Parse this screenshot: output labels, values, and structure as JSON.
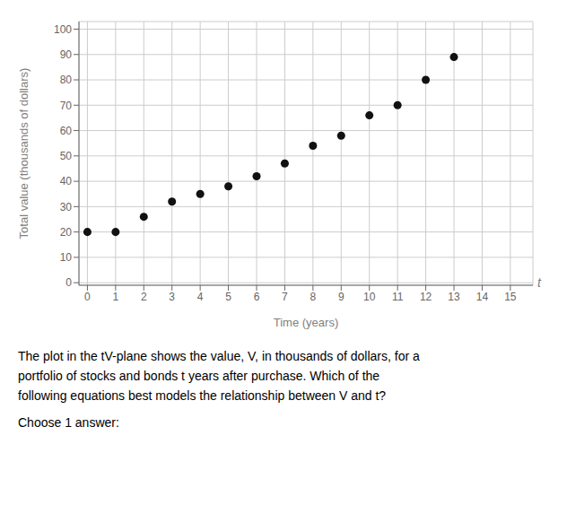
{
  "chart_data": {
    "type": "scatter",
    "x": [
      0,
      1,
      2,
      3,
      4,
      5,
      6,
      7,
      8,
      9,
      10,
      11,
      12,
      13
    ],
    "values": [
      20,
      20,
      26,
      32,
      35,
      38,
      42,
      47,
      54,
      58,
      66,
      70,
      80,
      89
    ],
    "color": "#111111",
    "xlabel": "Time (years)",
    "ylabel": "Total value (thousands of dollars)",
    "xlim": [
      -0.3,
      15.8
    ],
    "ylim": [
      -1,
      103
    ],
    "xticks": [
      0,
      1,
      2,
      3,
      4,
      5,
      6,
      7,
      8,
      9,
      10,
      11,
      12,
      13,
      14,
      15
    ],
    "yticks": [
      0,
      10,
      20,
      30,
      40,
      50,
      60,
      70,
      80,
      90,
      100
    ],
    "grid": true,
    "annotations": [
      "t",
      "The plot in the tV-plane shows the value, V, in thousands of dollars, for a",
      "portfolio of stocks and bonds t years after purchase. Which of the",
      "following equations best models the relationship between V and t?",
      "Choose 1 answer:"
    ]
  }
}
